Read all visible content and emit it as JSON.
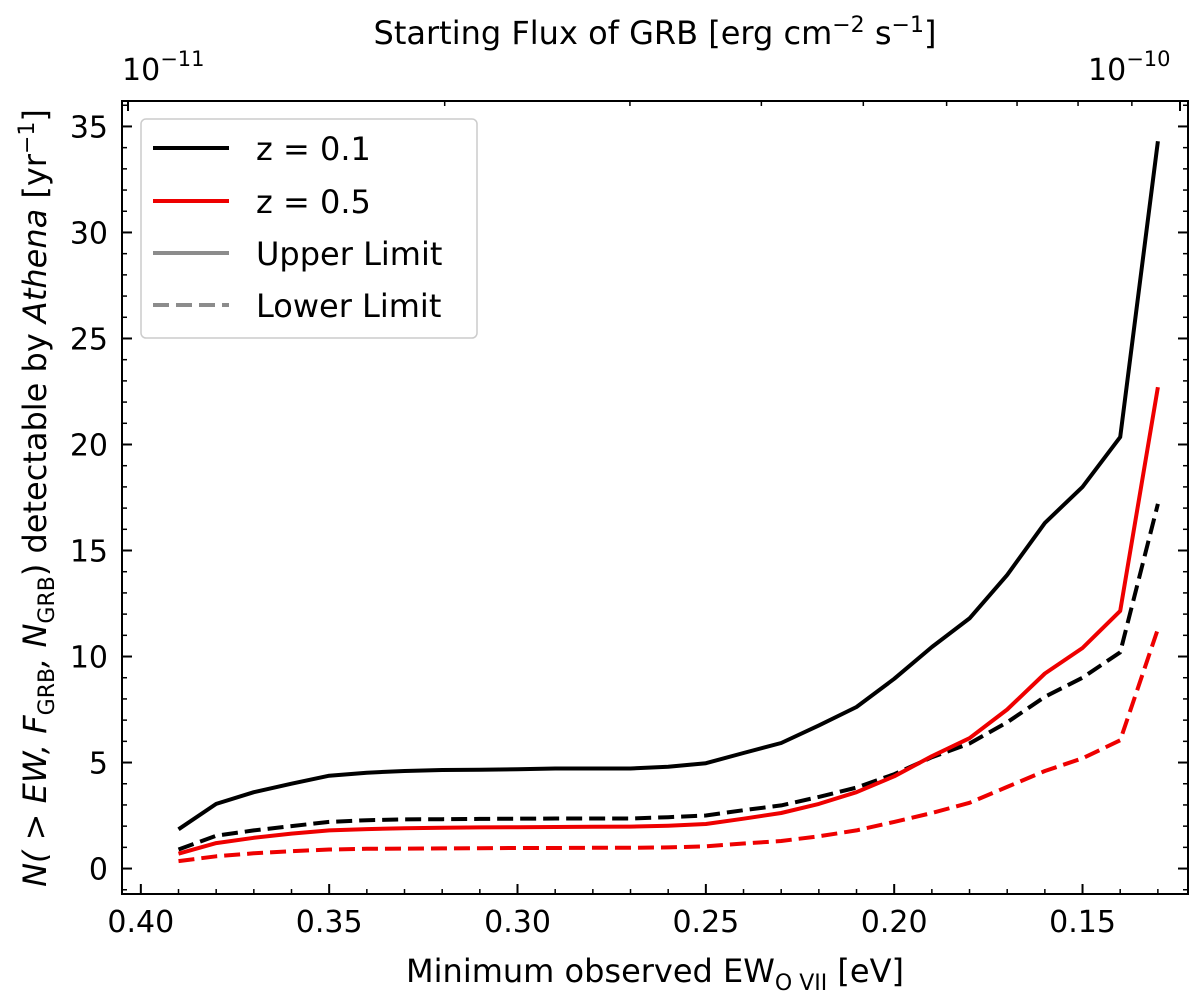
{
  "chart_data": {
    "type": "line",
    "title": "",
    "top_axis": {
      "label_main": "Starting Flux of GRB [erg cm",
      "label_exp1": "−2",
      "label_mid": " s",
      "label_exp2": "−1",
      "label_end": "]",
      "ticks": [
        {
          "base": "10",
          "exp": "−11"
        },
        {
          "base": "10",
          "exp": "−10"
        }
      ]
    },
    "xlabel": {
      "main": "Minimum observed EW",
      "sub": "O VII",
      "end": " [eV]"
    },
    "ylabel": {
      "p1": "N( > EW, F",
      "sub1": "GRB",
      "p2": ", N",
      "sub2": "GRB",
      "p3": ") detectable by ",
      "italic": "Athena",
      "p4": " [yr",
      "exp": "−1",
      "p5": "]"
    },
    "xlim": [
      0.405,
      0.122
    ],
    "ylim": [
      -1.2,
      36.2
    ],
    "xticks": [
      0.4,
      0.35,
      0.3,
      0.25,
      0.2,
      0.15
    ],
    "xtick_labels": [
      "0.40",
      "0.35",
      "0.30",
      "0.25",
      "0.20",
      "0.15"
    ],
    "yticks": [
      0,
      5,
      10,
      15,
      20,
      25,
      30,
      35
    ],
    "ytick_labels": [
      "0",
      "5",
      "10",
      "15",
      "20",
      "25",
      "30",
      "35"
    ],
    "x": [
      0.39,
      0.38,
      0.37,
      0.36,
      0.35,
      0.34,
      0.33,
      0.32,
      0.31,
      0.3,
      0.29,
      0.28,
      0.27,
      0.26,
      0.25,
      0.24,
      0.23,
      0.22,
      0.21,
      0.2,
      0.19,
      0.18,
      0.17,
      0.16,
      0.15,
      0.14,
      0.13
    ],
    "series": [
      {
        "name": "z = 0.1 upper",
        "color": "#000000",
        "style": "solid",
        "values": [
          1.85,
          3.05,
          3.6,
          4.0,
          4.38,
          4.52,
          4.6,
          4.65,
          4.66,
          4.68,
          4.72,
          4.72,
          4.72,
          4.8,
          4.97,
          5.45,
          5.92,
          6.75,
          7.62,
          8.95,
          10.45,
          11.8,
          13.85,
          16.3,
          18.0,
          20.35,
          34.3
        ]
      },
      {
        "name": "z = 0.1 lower",
        "color": "#000000",
        "style": "dashed",
        "values": [
          0.9,
          1.55,
          1.8,
          2.0,
          2.2,
          2.28,
          2.32,
          2.33,
          2.34,
          2.35,
          2.36,
          2.36,
          2.36,
          2.42,
          2.5,
          2.75,
          2.98,
          3.38,
          3.82,
          4.45,
          5.25,
          5.9,
          6.9,
          8.1,
          9.0,
          10.2,
          17.2
        ]
      },
      {
        "name": "z = 0.5 upper",
        "color": "#ee0000",
        "style": "solid",
        "values": [
          0.7,
          1.2,
          1.45,
          1.65,
          1.8,
          1.86,
          1.9,
          1.92,
          1.94,
          1.95,
          1.96,
          1.97,
          1.98,
          2.02,
          2.1,
          2.35,
          2.62,
          3.05,
          3.6,
          4.35,
          5.3,
          6.15,
          7.5,
          9.2,
          10.4,
          12.15,
          22.7
        ]
      },
      {
        "name": "z = 0.5 lower",
        "color": "#ee0000",
        "style": "dashed",
        "values": [
          0.35,
          0.58,
          0.72,
          0.82,
          0.9,
          0.93,
          0.94,
          0.95,
          0.96,
          0.97,
          0.97,
          0.98,
          0.98,
          1.0,
          1.05,
          1.18,
          1.3,
          1.52,
          1.8,
          2.2,
          2.62,
          3.1,
          3.85,
          4.6,
          5.2,
          6.05,
          11.3
        ]
      }
    ],
    "legend": {
      "position": "top-left",
      "entries": [
        {
          "label": "z = 0.1",
          "color": "#000000",
          "style": "solid"
        },
        {
          "label": "z = 0.5",
          "color": "#ee0000",
          "style": "solid"
        },
        {
          "label": "Upper Limit",
          "color": "#8c8c8c",
          "style": "solid"
        },
        {
          "label": "Lower Limit",
          "color": "#8c8c8c",
          "style": "dashed"
        }
      ]
    }
  }
}
